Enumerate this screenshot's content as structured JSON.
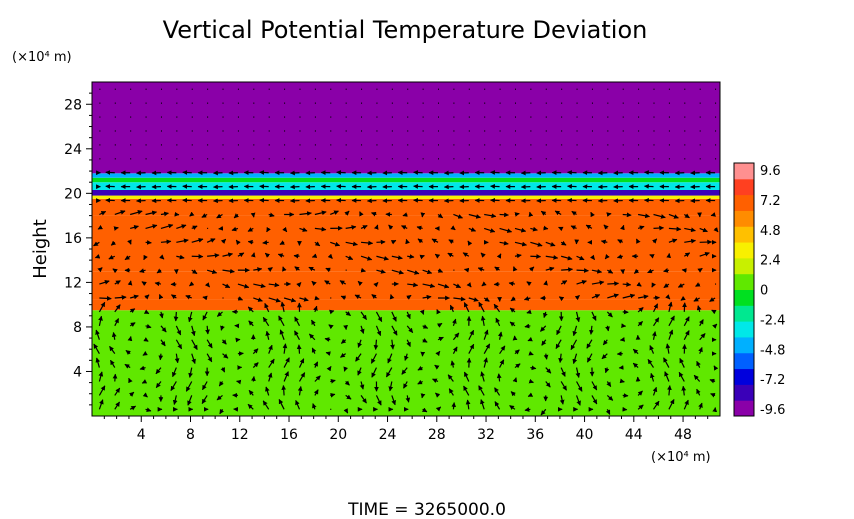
{
  "chart_data": {
    "type": "heatmap",
    "title": "Vertical Potential Temperature Deviation",
    "ylabel": "Height",
    "y_unit": "(×10⁴ m)",
    "x_unit": "(×10⁴ m)",
    "footer": "TIME = 3265000.0",
    "xlim": [
      0,
      51
    ],
    "ylim": [
      0,
      30
    ],
    "x_ticks": [
      4,
      8,
      12,
      16,
      20,
      24,
      28,
      32,
      36,
      40,
      44,
      48
    ],
    "y_ticks": [
      4,
      8,
      12,
      16,
      20,
      24,
      28
    ],
    "colorbar": {
      "ticks": [
        "9.6",
        "7.2",
        "4.8",
        "2.4",
        "0",
        "-2.4",
        "-4.8",
        "-7.2",
        "-9.6"
      ],
      "range": [
        -9.6,
        9.6
      ],
      "colors": [
        "#8a00a8",
        "#3a00b8",
        "#0000dd",
        "#0060ff",
        "#00b0ff",
        "#00e8e8",
        "#00e890",
        "#00e020",
        "#60e800",
        "#c8f000",
        "#f8f000",
        "#ffc000",
        "#ff8c00",
        "#ff6000",
        "#ff4020",
        "#ff9090"
      ]
    },
    "layers": [
      {
        "y0": 0,
        "y1": 9.5,
        "value": 0
      },
      {
        "y0": 9.5,
        "y1": 10.5,
        "value": 6.0
      },
      {
        "y0": 10.5,
        "y1": 13.0,
        "value": 6.8
      },
      {
        "y0": 13.0,
        "y1": 18.0,
        "value": 6.0
      },
      {
        "y0": 18.0,
        "y1": 19.5,
        "value": 6.8
      },
      {
        "y0": 19.5,
        "y1": 19.8,
        "value": 2.4
      },
      {
        "y0": 19.8,
        "y1": 20.3,
        "value": -7.2
      },
      {
        "y0": 20.3,
        "y1": 21.0,
        "value": -3.6
      },
      {
        "y0": 21.0,
        "y1": 21.4,
        "value": -1.2
      },
      {
        "y0": 21.4,
        "y1": 21.8,
        "value": -4.8
      },
      {
        "y0": 21.8,
        "y1": 30,
        "value": -9.6
      }
    ],
    "vector_field": {
      "type": "quiver",
      "x_spacing": 1.25,
      "y_spacing": 1.25
    }
  }
}
